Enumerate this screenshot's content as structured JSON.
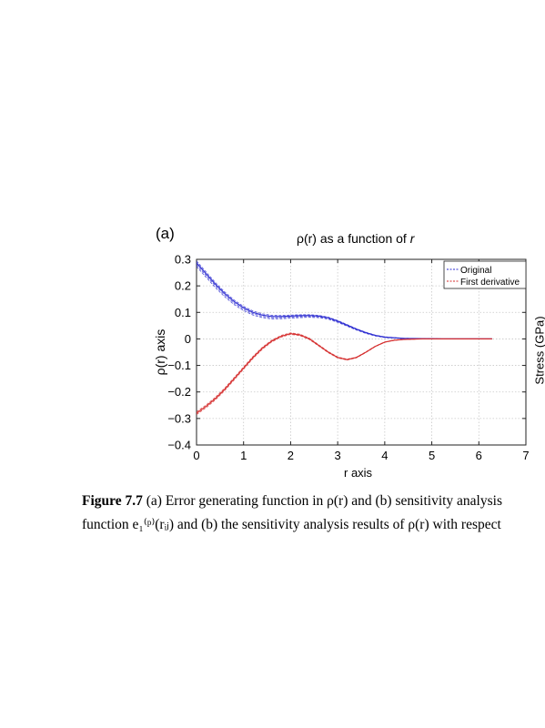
{
  "panel_label": "(a)",
  "cutoff_axis_label": "Stress (GPa)",
  "caption": {
    "figure_label": "Figure 7.7",
    "line1": "(a) Error generating function in ρ(r) and (b) sensitivity analysis",
    "line2": "function e₁⁽ᵖ⁾(rᵢⱼ) and (b) the sensitivity analysis results of ρ(r) with respect"
  },
  "chart_data": {
    "type": "line",
    "title_prefix": "ρ(r) as a function of ",
    "title_var": "r",
    "xlabel": "r axis",
    "ylabel": "ρ(r) axis",
    "xlim": [
      0,
      7
    ],
    "ylim": [
      -0.4,
      0.3
    ],
    "x_ticks": [
      0,
      1,
      2,
      3,
      4,
      5,
      6,
      7
    ],
    "y_ticks": [
      0.3,
      0.2,
      0.1,
      0,
      -0.1,
      -0.2,
      -0.3,
      -0.4
    ],
    "x_tick_labels": [
      "0",
      "1",
      "2",
      "3",
      "4",
      "5",
      "6",
      "7"
    ],
    "y_tick_labels": [
      "0.3",
      "0.2",
      "0.1",
      "0",
      "−0.1",
      "−0.2",
      "−0.3",
      "−0.4"
    ],
    "grid": true,
    "legend_position": "top-right",
    "colors": {
      "original": "#2a2ad0",
      "first_derivative": "#d42a2a",
      "grid": "#c8c8c8"
    },
    "series": [
      {
        "name": "Original",
        "x": [
          0,
          0.2,
          0.4,
          0.6,
          0.8,
          1.0,
          1.2,
          1.4,
          1.6,
          1.8,
          2.0,
          2.2,
          2.4,
          2.6,
          2.8,
          3.0,
          3.2,
          3.4,
          3.6,
          3.8,
          4.0,
          4.4,
          4.8,
          5.2,
          5.6,
          6.0,
          6.28
        ],
        "y": [
          0.28,
          0.24,
          0.2,
          0.165,
          0.135,
          0.112,
          0.095,
          0.085,
          0.08,
          0.08,
          0.082,
          0.084,
          0.085,
          0.083,
          0.077,
          0.065,
          0.05,
          0.035,
          0.022,
          0.012,
          0.006,
          0.002,
          0.001,
          0.0,
          0.0,
          0.0,
          0.0
        ]
      },
      {
        "name": "First derivative",
        "x": [
          0,
          0.2,
          0.4,
          0.6,
          0.8,
          1.0,
          1.2,
          1.4,
          1.6,
          1.8,
          2.0,
          2.2,
          2.4,
          2.6,
          2.8,
          3.0,
          3.2,
          3.4,
          3.6,
          3.8,
          4.0,
          4.2,
          4.4,
          4.8,
          5.2,
          5.6,
          6.0,
          6.28
        ],
        "y": [
          -0.28,
          -0.255,
          -0.225,
          -0.19,
          -0.15,
          -0.11,
          -0.07,
          -0.035,
          -0.008,
          0.01,
          0.02,
          0.015,
          0.0,
          -0.025,
          -0.05,
          -0.07,
          -0.078,
          -0.07,
          -0.05,
          -0.028,
          -0.012,
          -0.005,
          -0.002,
          0.0,
          0.0,
          0.0,
          0.0,
          0.0
        ]
      }
    ]
  }
}
